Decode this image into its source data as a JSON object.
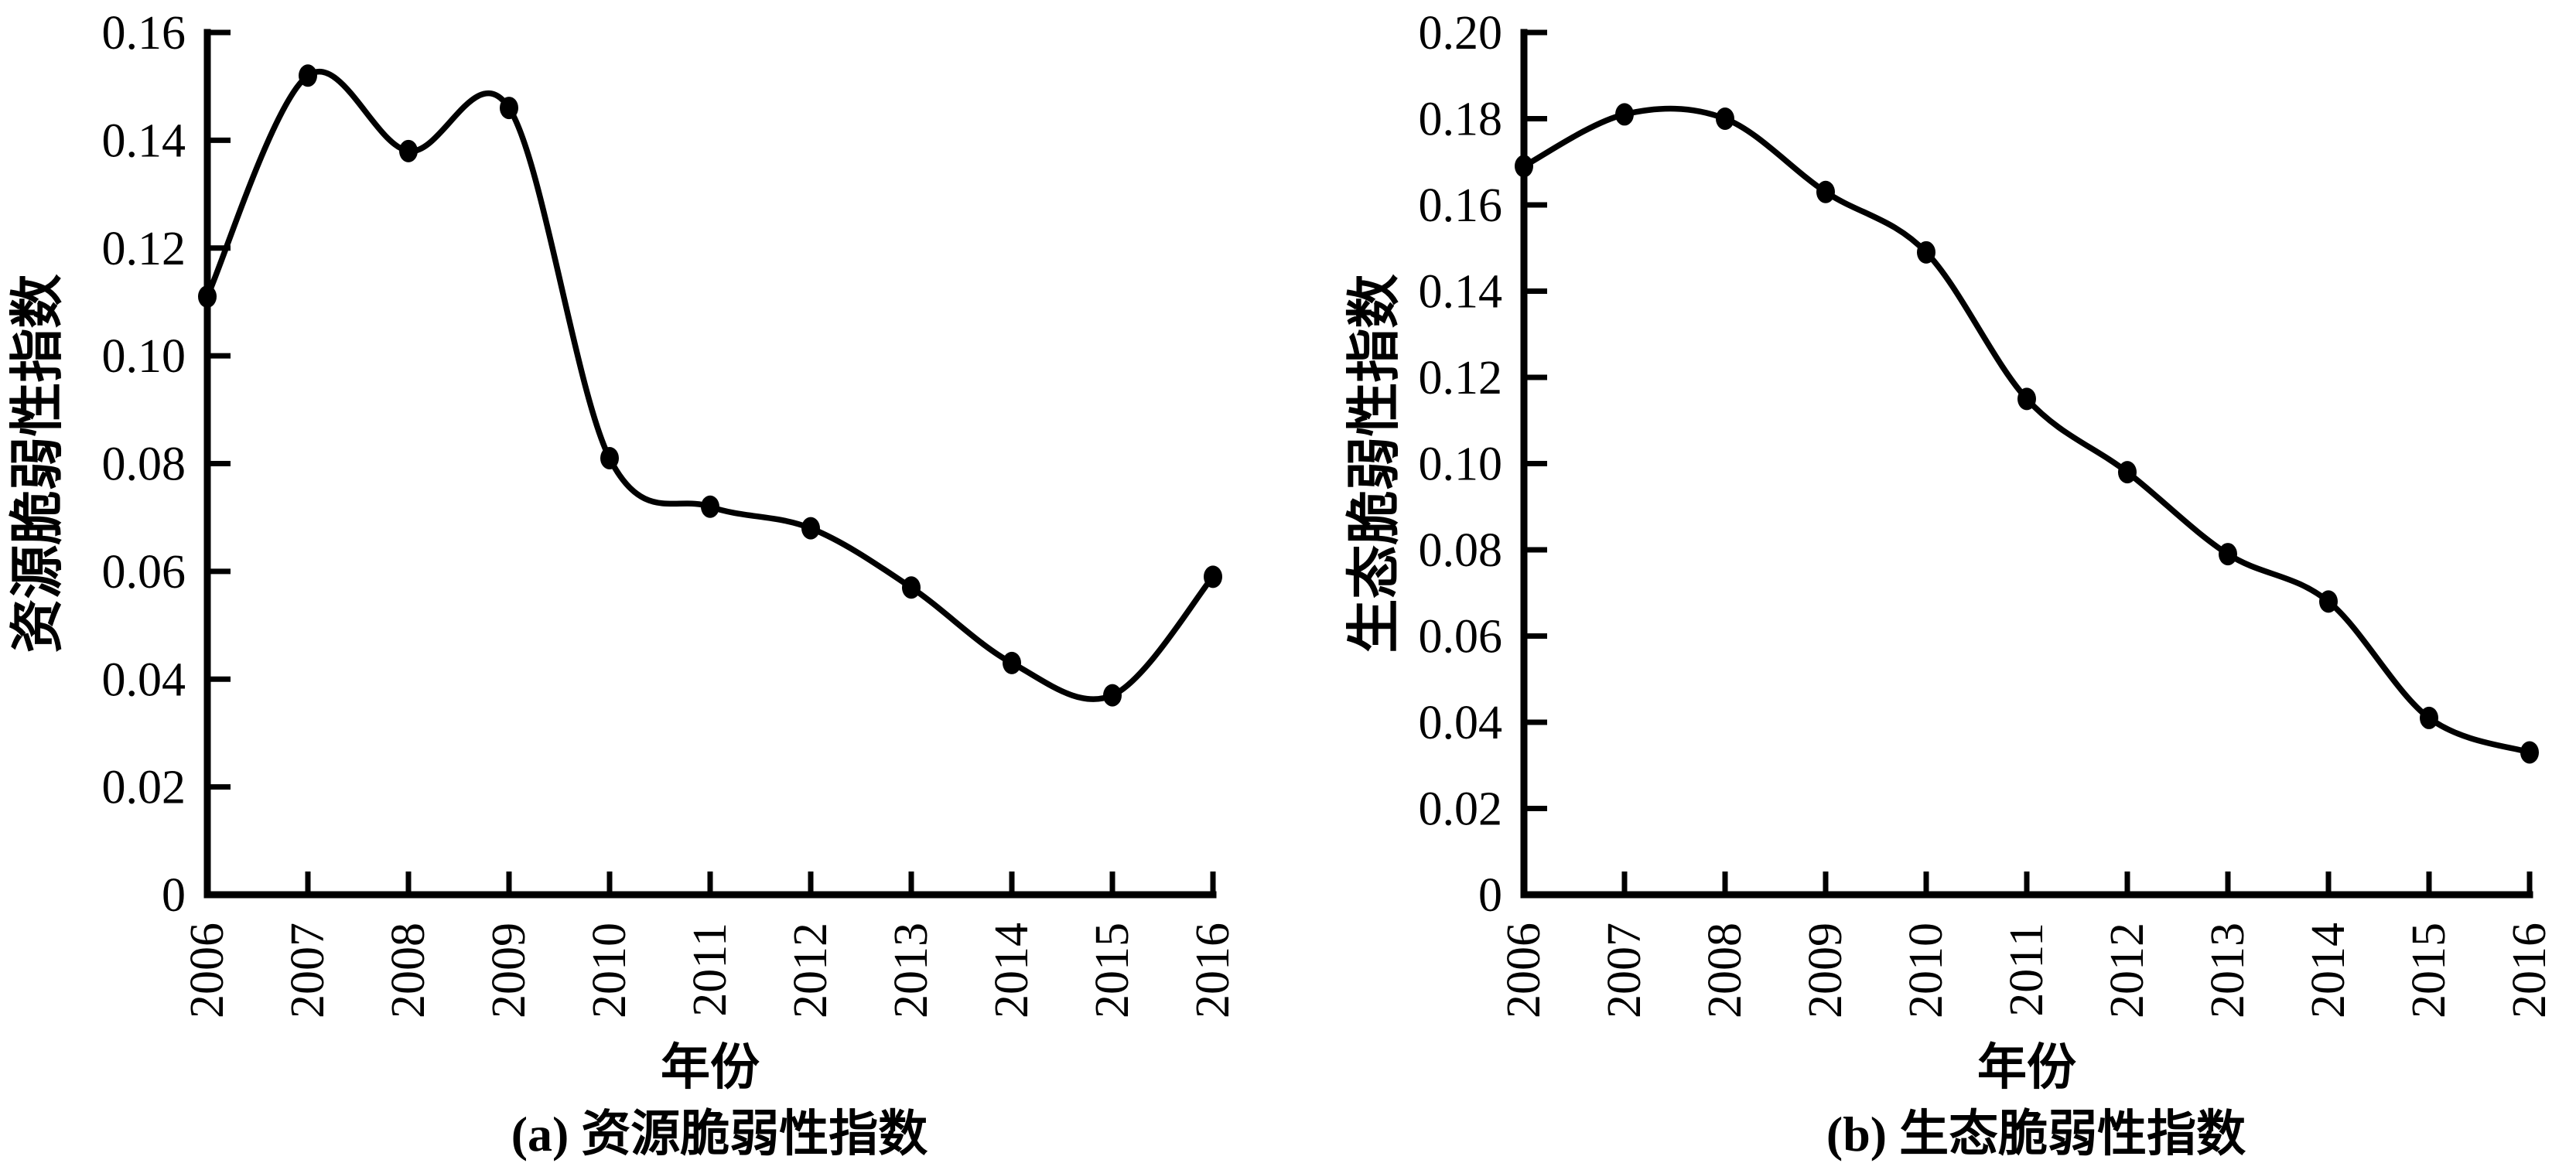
{
  "figure": {
    "background": "#ffffff",
    "ink_color": "#000000"
  },
  "chart_data": [
    {
      "type": "line",
      "panel_caption": "(a) 资源脆弱性指数",
      "xlabel": "年份",
      "ylabel": "资源脆弱性指数",
      "categories": [
        "2006",
        "2007",
        "2008",
        "2009",
        "2010",
        "2011",
        "2012",
        "2013",
        "2014",
        "2015",
        "2016"
      ],
      "values": [
        0.111,
        0.152,
        0.138,
        0.146,
        0.081,
        0.072,
        0.068,
        0.057,
        0.043,
        0.037,
        0.059
      ],
      "ylim": [
        0,
        0.16
      ],
      "ytick_values": [
        0,
        0.02,
        0.04,
        0.06,
        0.08,
        0.1,
        0.12,
        0.14,
        0.16
      ],
      "ytick_labels": [
        "0",
        "0.02",
        "0.04",
        "0.06",
        "0.08",
        "0.10",
        "0.12",
        "0.14",
        "0.16"
      ],
      "grid": false,
      "legend": "none",
      "line_color": "#000000",
      "marker": "filled-circle"
    },
    {
      "type": "line",
      "panel_caption": "(b) 生态脆弱性指数",
      "xlabel": "年份",
      "ylabel": "生态脆弱性指数",
      "categories": [
        "2006",
        "2007",
        "2008",
        "2009",
        "2010",
        "2011",
        "2012",
        "2013",
        "2014",
        "2015",
        "2016"
      ],
      "values": [
        0.169,
        0.181,
        0.18,
        0.163,
        0.149,
        0.115,
        0.098,
        0.079,
        0.068,
        0.041,
        0.033
      ],
      "ylim": [
        0,
        0.2
      ],
      "ytick_values": [
        0,
        0.02,
        0.04,
        0.06,
        0.08,
        0.1,
        0.12,
        0.14,
        0.16,
        0.18,
        0.2
      ],
      "ytick_labels": [
        "0",
        "0.02",
        "0.04",
        "0.06",
        "0.08",
        "0.10",
        "0.12",
        "0.14",
        "0.16",
        "0.18",
        "0.20"
      ],
      "grid": false,
      "legend": "none",
      "line_color": "#000000",
      "marker": "filled-circle"
    }
  ]
}
